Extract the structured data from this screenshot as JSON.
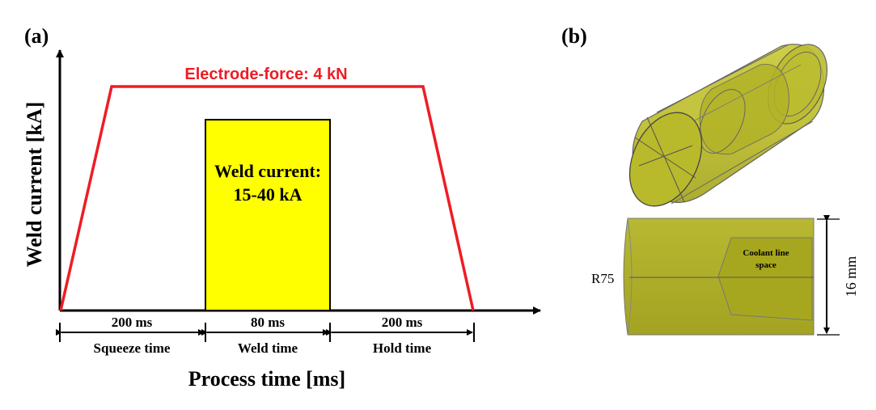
{
  "panel_a": {
    "label": "(a)",
    "y_axis_label": "Weld current [kA]",
    "x_axis_label": "Process time [ms]",
    "force_label": "Electrode-force: 4 kN",
    "current_box": {
      "line1": "Weld current:",
      "line2": "15-40 kA"
    },
    "segments": [
      {
        "duration": "200 ms",
        "name": "Squeeze time"
      },
      {
        "duration": "80 ms",
        "name": "Weld time"
      },
      {
        "duration": "200 ms",
        "name": "Hold time"
      }
    ],
    "colors": {
      "force": "#ee1c25",
      "current_fill": "#ffff00",
      "axis": "#000000"
    }
  },
  "panel_b": {
    "label": "(b)",
    "radius_label": "R75",
    "coolant_label": {
      "line1": "Coolant line",
      "line2": "space"
    },
    "dimension_label": "16 mm",
    "colors": {
      "body": "#c8c832",
      "body_dark": "#a9a925",
      "edge": "#555555"
    }
  }
}
